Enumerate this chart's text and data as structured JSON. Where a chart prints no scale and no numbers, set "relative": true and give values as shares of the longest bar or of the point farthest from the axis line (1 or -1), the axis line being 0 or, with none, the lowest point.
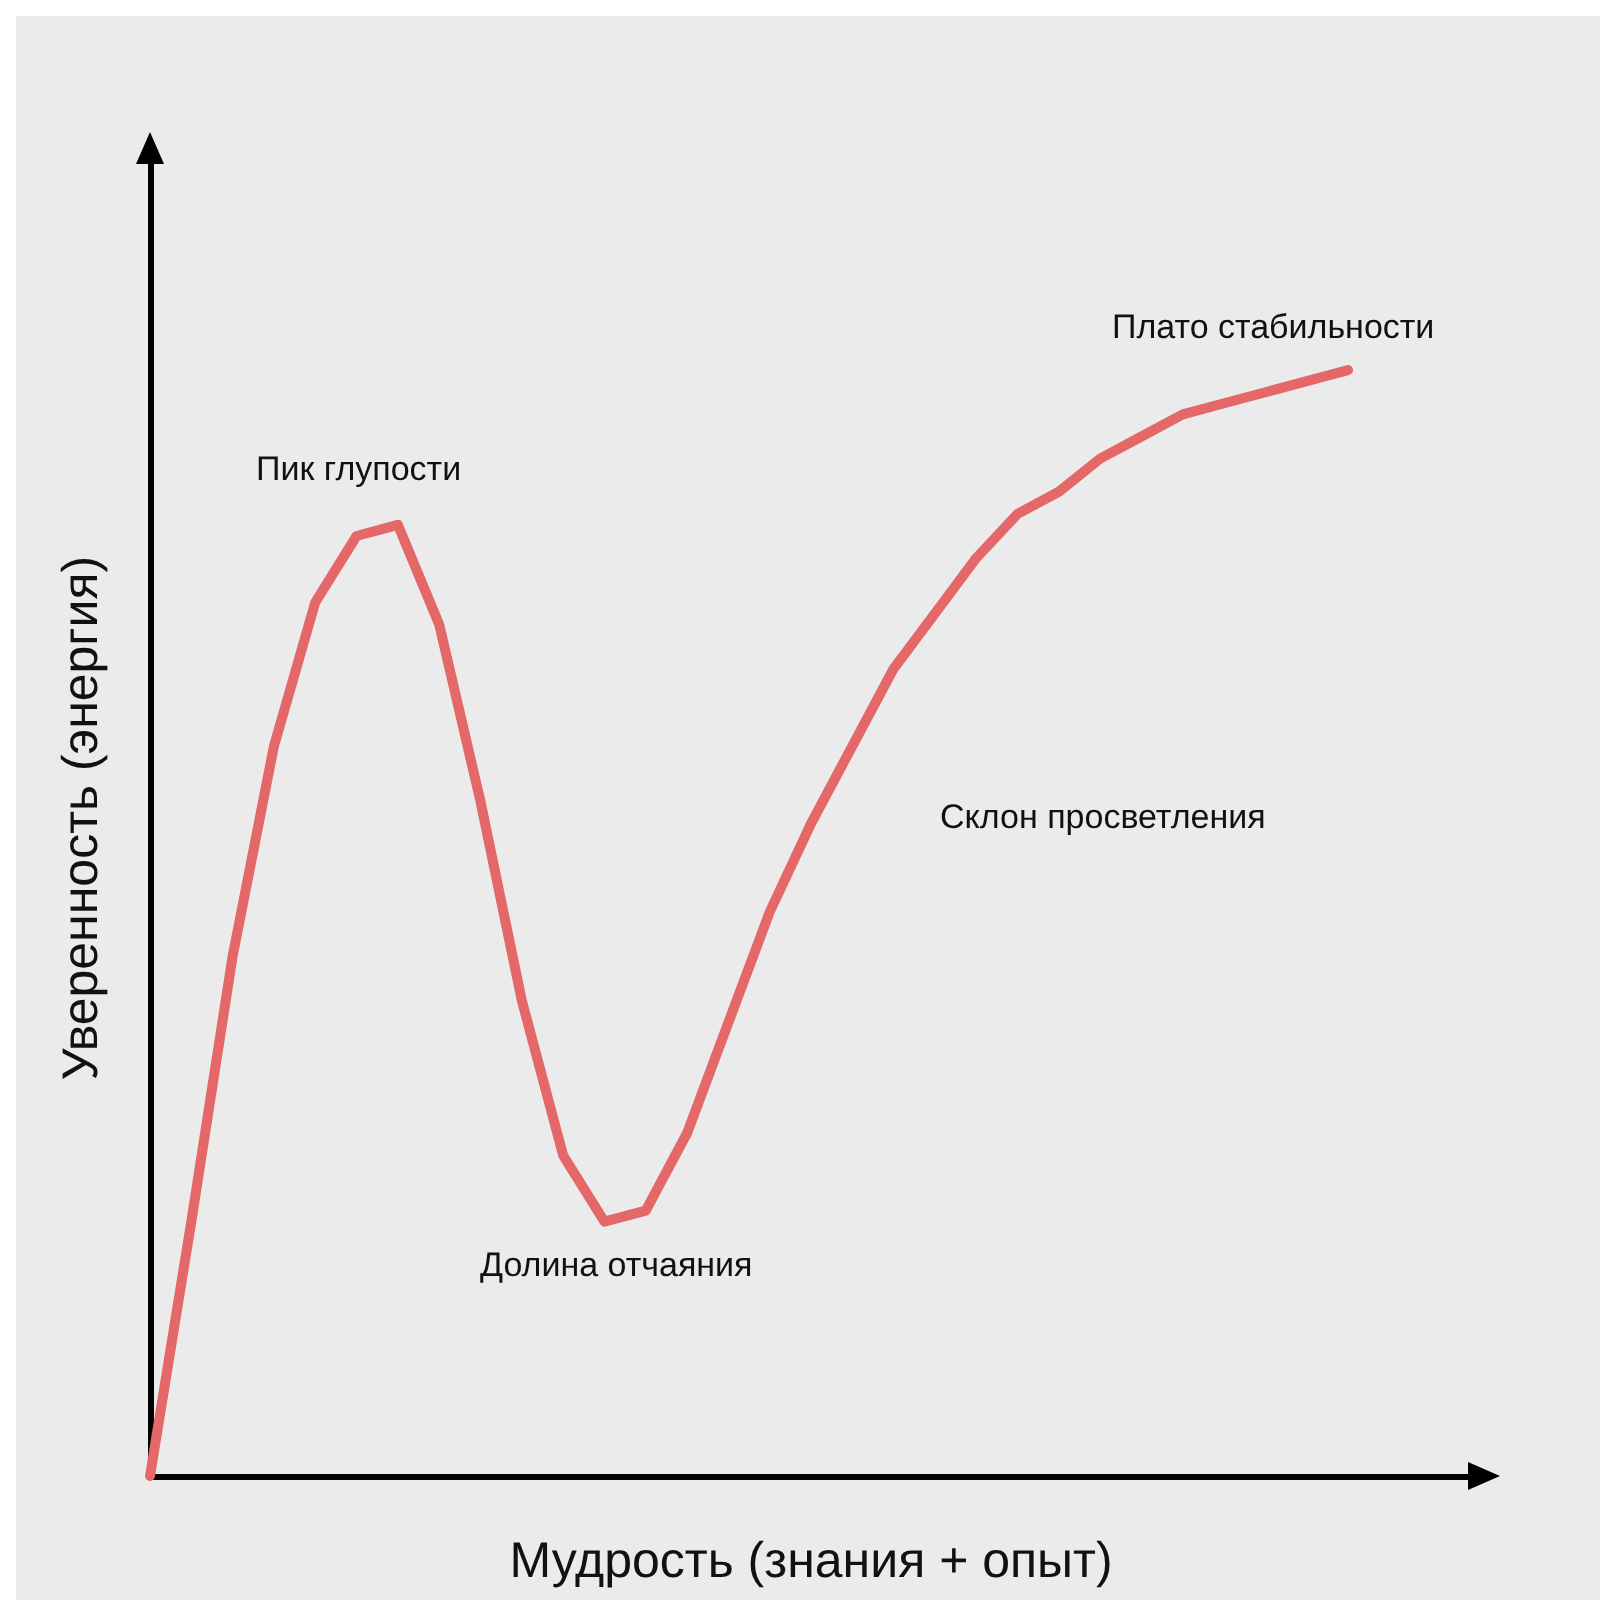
{
  "chart_data": {
    "type": "line",
    "relative": true,
    "xlabel": "Мудрость (знания + опыт)",
    "ylabel": "Уверенность (энергия)",
    "categories": [
      null,
      null,
      null,
      null,
      null,
      null,
      null,
      null,
      null,
      null,
      null,
      null,
      null,
      null,
      null,
      null,
      null,
      null,
      null,
      null,
      null,
      null,
      null,
      null,
      null,
      null,
      null,
      null,
      null,
      null
    ],
    "series": [
      {
        "values": [
          0,
          0.23,
          0.47,
          0.66,
          0.79,
          0.85,
          0.86,
          0.77,
          0.61,
          0.43,
          0.29,
          0.23,
          0.24,
          0.31,
          0.41,
          0.51,
          0.59,
          0.66,
          0.73,
          0.78,
          0.83,
          0.87,
          0.89,
          0.92,
          0.94,
          0.96,
          0.97,
          0.98,
          0.99,
          1
        ],
        "color": "#e46868"
      }
    ],
    "annotations": [
      "Пик глупости",
      "Долина отчаяния",
      "Склон просветления",
      "Плато стабильности"
    ],
    "grid": false,
    "marker": "none",
    "line_style": "solid"
  }
}
